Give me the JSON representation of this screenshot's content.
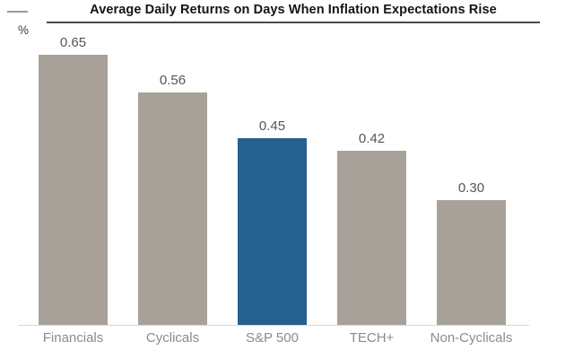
{
  "header": {
    "title": "Average Daily Returns on Days When Inflation Expectations Rise",
    "unit_label": "%"
  },
  "chart_data": {
    "type": "bar",
    "title": "Average Daily Returns on Days When Inflation Expectations Rise",
    "xlabel": "",
    "ylabel": "%",
    "categories": [
      "Financials",
      "Cyclicals",
      "S&P 500",
      "TECH+",
      "Non-Cyclicals"
    ],
    "values": [
      0.65,
      0.56,
      0.45,
      0.42,
      0.3
    ],
    "value_labels": [
      "0.65",
      "0.56",
      "0.45",
      "0.42",
      "0.30"
    ],
    "ylim": [
      0,
      0.72
    ],
    "grid": false,
    "legend": false,
    "highlight_category": "S&P 500",
    "bar_colors": [
      "#a8a19a",
      "#a8a19a",
      "#25608e",
      "#a8a19a",
      "#a8a19a"
    ],
    "colors": {
      "bar_default": "#a8a19a",
      "bar_highlight": "#25608e",
      "value_label": "#555555",
      "category_label": "#8b8b8b",
      "axis_line": "#d9d9d9",
      "title_underline": "#4a4a4a"
    }
  }
}
